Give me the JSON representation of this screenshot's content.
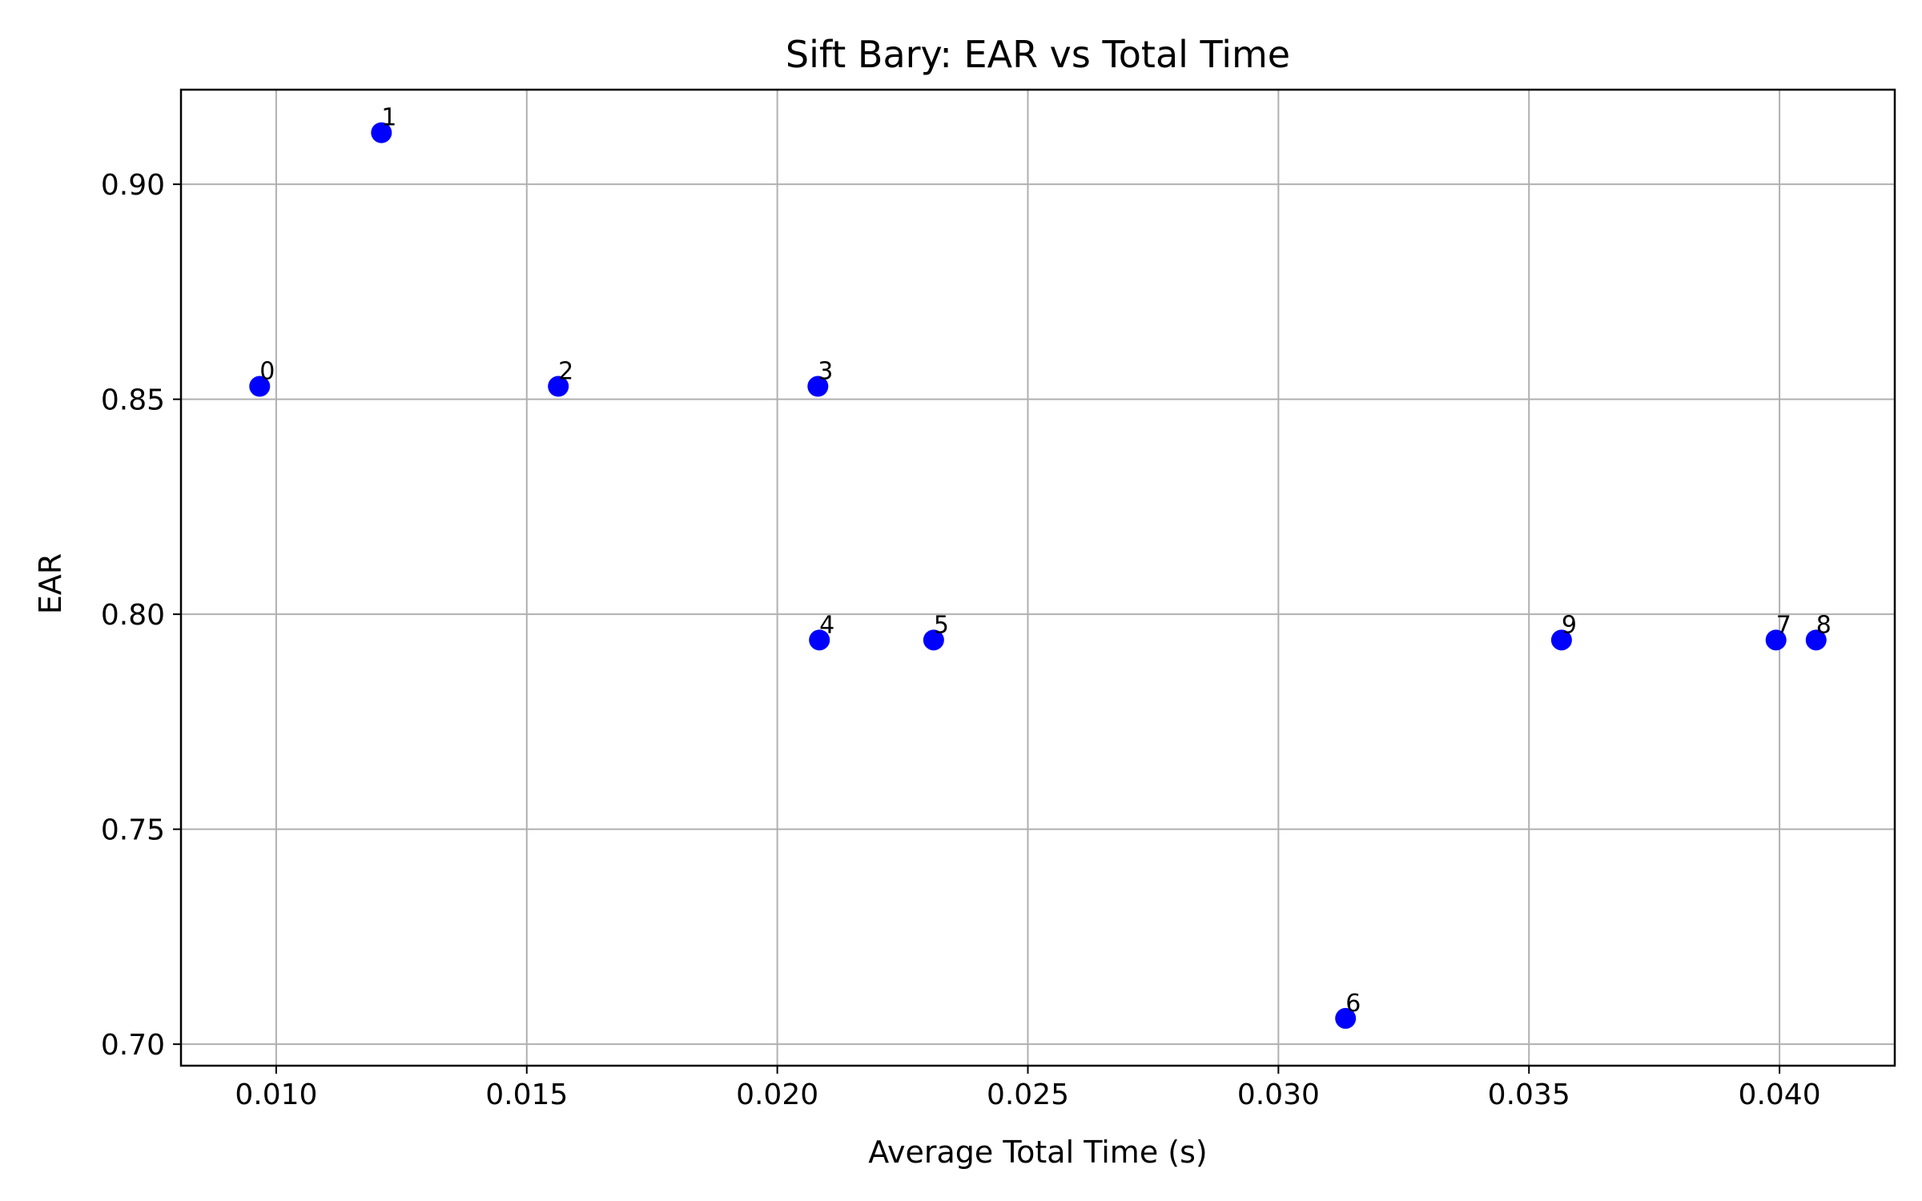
{
  "chart_data": {
    "type": "scatter",
    "title": "Sift Bary: EAR vs Total Time",
    "xlabel": "Average Total Time (s)",
    "ylabel": "EAR",
    "xlim": [
      0.0081,
      0.0423
    ],
    "ylim": [
      0.695,
      0.922
    ],
    "xticks": [
      0.01,
      0.015,
      0.02,
      0.025,
      0.03,
      0.035,
      0.04
    ],
    "xtick_labels": [
      "0.010",
      "0.015",
      "0.020",
      "0.025",
      "0.030",
      "0.035",
      "0.040"
    ],
    "yticks": [
      0.7,
      0.75,
      0.8,
      0.85,
      0.9
    ],
    "ytick_labels": [
      "0.70",
      "0.75",
      "0.80",
      "0.85",
      "0.90"
    ],
    "grid": true,
    "marker_color": "#0000ff",
    "series": [
      {
        "name": "points",
        "points": [
          {
            "label": "0",
            "x": 0.00967,
            "y": 0.853
          },
          {
            "label": "1",
            "x": 0.0121,
            "y": 0.912
          },
          {
            "label": "2",
            "x": 0.01563,
            "y": 0.853
          },
          {
            "label": "3",
            "x": 0.02081,
            "y": 0.853
          },
          {
            "label": "4",
            "x": 0.02084,
            "y": 0.794
          },
          {
            "label": "5",
            "x": 0.02312,
            "y": 0.794
          },
          {
            "label": "6",
            "x": 0.03134,
            "y": 0.706
          },
          {
            "label": "7",
            "x": 0.03993,
            "y": 0.794
          },
          {
            "label": "8",
            "x": 0.04073,
            "y": 0.794
          },
          {
            "label": "9",
            "x": 0.03565,
            "y": 0.794
          }
        ]
      }
    ]
  }
}
